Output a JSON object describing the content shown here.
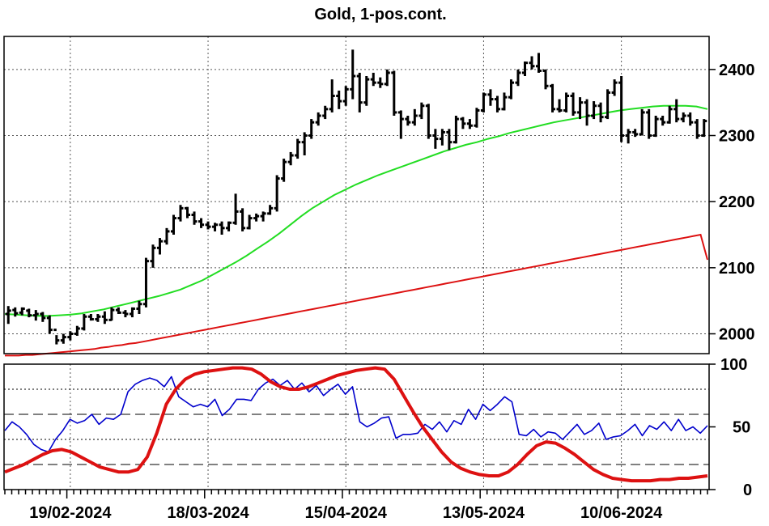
{
  "chart_data": [
    {
      "type": "ohlc",
      "title": "Gold, 1-pos.cont.",
      "ylim": [
        1970,
        2450
      ],
      "yticks": [
        2000,
        2100,
        2200,
        2300,
        2400
      ],
      "x_labels": [
        "19/02-2024",
        "18/03-2024",
        "15/04-2024",
        "13/05-2024",
        "10/06-2024"
      ],
      "x_label_index": [
        9,
        29,
        49,
        69,
        89
      ],
      "colors": {
        "bars": "#000000",
        "ma_fast": "#22dd22",
        "ma_slow": "#dd1111"
      },
      "bars": [
        [
          2030,
          2042,
          2015,
          2035
        ],
        [
          2036,
          2040,
          2026,
          2031
        ],
        [
          2032,
          2040,
          2028,
          2038
        ],
        [
          2035,
          2038,
          2025,
          2028
        ],
        [
          2028,
          2036,
          2020,
          2030
        ],
        [
          2030,
          2033,
          2018,
          2024
        ],
        [
          2024,
          2028,
          2000,
          2006
        ],
        [
          2006,
          1998,
          1984,
          1990
        ],
        [
          1990,
          2000,
          1985,
          1995
        ],
        [
          1995,
          2004,
          1990,
          2000
        ],
        [
          2000,
          2012,
          1997,
          2008
        ],
        [
          2008,
          2030,
          2005,
          2026
        ],
        [
          2026,
          2030,
          2020,
          2022
        ],
        [
          2022,
          2030,
          2018,
          2026
        ],
        [
          2026,
          2034,
          2015,
          2021
        ],
        [
          2021,
          2040,
          2020,
          2036
        ],
        [
          2036,
          2040,
          2030,
          2032
        ],
        [
          2032,
          2036,
          2025,
          2030
        ],
        [
          2030,
          2040,
          2025,
          2038
        ],
        [
          2038,
          2050,
          2030,
          2045
        ],
        [
          2045,
          2115,
          2040,
          2110
        ],
        [
          2110,
          2135,
          2100,
          2130
        ],
        [
          2130,
          2145,
          2120,
          2140
        ],
        [
          2140,
          2160,
          2135,
          2155
        ],
        [
          2155,
          2180,
          2150,
          2175
        ],
        [
          2175,
          2195,
          2170,
          2190
        ],
        [
          2190,
          2192,
          2175,
          2180
        ],
        [
          2180,
          2185,
          2165,
          2170
        ],
        [
          2170,
          2175,
          2160,
          2165
        ],
        [
          2165,
          2170,
          2158,
          2162
        ],
        [
          2162,
          2168,
          2155,
          2165
        ],
        [
          2165,
          2170,
          2150,
          2160
        ],
        [
          2160,
          2170,
          2155,
          2168
        ],
        [
          2168,
          2212,
          2165,
          2185
        ],
        [
          2185,
          2190,
          2155,
          2160
        ],
        [
          2160,
          2180,
          2158,
          2175
        ],
        [
          2175,
          2182,
          2170,
          2178
        ],
        [
          2178,
          2185,
          2170,
          2182
        ],
        [
          2182,
          2195,
          2180,
          2190
        ],
        [
          2190,
          2240,
          2185,
          2235
        ],
        [
          2235,
          2265,
          2230,
          2260
        ],
        [
          2260,
          2275,
          2255,
          2270
        ],
        [
          2270,
          2295,
          2265,
          2290
        ],
        [
          2290,
          2305,
          2270,
          2300
        ],
        [
          2300,
          2325,
          2295,
          2320
        ],
        [
          2320,
          2335,
          2315,
          2330
        ],
        [
          2330,
          2345,
          2325,
          2340
        ],
        [
          2340,
          2385,
          2335,
          2360
        ],
        [
          2360,
          2368,
          2340,
          2352
        ],
        [
          2352,
          2375,
          2345,
          2370
        ],
        [
          2370,
          2430,
          2355,
          2390
        ],
        [
          2390,
          2395,
          2335,
          2350
        ],
        [
          2350,
          2390,
          2345,
          2385
        ],
        [
          2385,
          2395,
          2375,
          2380
        ],
        [
          2380,
          2388,
          2372,
          2378
        ],
        [
          2378,
          2400,
          2375,
          2395
        ],
        [
          2395,
          2398,
          2330,
          2335
        ],
        [
          2335,
          2338,
          2295,
          2325
        ],
        [
          2325,
          2330,
          2315,
          2320
        ],
        [
          2320,
          2340,
          2315,
          2330
        ],
        [
          2330,
          2350,
          2325,
          2345
        ],
        [
          2345,
          2348,
          2295,
          2300
        ],
        [
          2300,
          2310,
          2280,
          2295
        ],
        [
          2295,
          2310,
          2285,
          2305
        ],
        [
          2305,
          2310,
          2278,
          2290
        ],
        [
          2290,
          2330,
          2288,
          2325
        ],
        [
          2325,
          2328,
          2310,
          2318
        ],
        [
          2318,
          2325,
          2310,
          2315
        ],
        [
          2315,
          2342,
          2312,
          2338
        ],
        [
          2338,
          2365,
          2335,
          2362
        ],
        [
          2362,
          2370,
          2345,
          2355
        ],
        [
          2355,
          2360,
          2335,
          2340
        ],
        [
          2340,
          2365,
          2338,
          2358
        ],
        [
          2358,
          2385,
          2355,
          2380
        ],
        [
          2380,
          2400,
          2375,
          2395
        ],
        [
          2395,
          2412,
          2390,
          2410
        ],
        [
          2410,
          2420,
          2400,
          2405
        ],
        [
          2405,
          2425,
          2395,
          2398
        ],
        [
          2398,
          2400,
          2370,
          2375
        ],
        [
          2375,
          2378,
          2335,
          2340
        ],
        [
          2340,
          2355,
          2335,
          2338
        ],
        [
          2338,
          2365,
          2335,
          2360
        ],
        [
          2360,
          2365,
          2330,
          2335
        ],
        [
          2335,
          2358,
          2325,
          2350
        ],
        [
          2350,
          2355,
          2315,
          2330
        ],
        [
          2330,
          2352,
          2325,
          2345
        ],
        [
          2345,
          2350,
          2320,
          2328
        ],
        [
          2328,
          2370,
          2325,
          2365
        ],
        [
          2365,
          2385,
          2360,
          2380
        ],
        [
          2380,
          2390,
          2290,
          2300
        ],
        [
          2300,
          2310,
          2288,
          2305
        ],
        [
          2305,
          2310,
          2298,
          2302
        ],
        [
          2302,
          2340,
          2300,
          2335
        ],
        [
          2335,
          2340,
          2295,
          2300
        ],
        [
          2300,
          2330,
          2298,
          2325
        ],
        [
          2325,
          2330,
          2315,
          2320
        ],
        [
          2320,
          2345,
          2318,
          2340
        ],
        [
          2340,
          2355,
          2320,
          2325
        ],
        [
          2325,
          2335,
          2320,
          2330
        ],
        [
          2330,
          2335,
          2315,
          2320
        ],
        [
          2320,
          2325,
          2295,
          2300
        ],
        [
          2300,
          2325,
          2298,
          2322
        ]
      ],
      "ma_fast": [
        2030,
        2029,
        2028,
        2027,
        2027,
        2028,
        2029,
        2031,
        2034,
        2037,
        2041,
        2045,
        2049,
        2053,
        2057,
        2062,
        2067,
        2074,
        2081,
        2090,
        2099,
        2108,
        2118,
        2129,
        2140,
        2152,
        2165,
        2178,
        2190,
        2200,
        2210,
        2218,
        2226,
        2233,
        2240,
        2246,
        2252,
        2258,
        2264,
        2270,
        2276,
        2281,
        2286,
        2290,
        2295,
        2299,
        2304,
        2308,
        2312,
        2316,
        2320,
        2323,
        2326,
        2329,
        2332,
        2335,
        2338,
        2340,
        2342,
        2344,
        2345,
        2345,
        2345,
        2344,
        2340
      ],
      "ma_fast_start": 0,
      "ma_slow": [
        1967,
        1967,
        1967,
        1968,
        1968,
        1969,
        1970,
        1971,
        1972,
        1973,
        1974,
        1975,
        1976,
        1977,
        1979,
        1980,
        1982,
        1983,
        1985,
        1986,
        1988,
        1990,
        1992,
        1994,
        1996,
        1998,
        2000,
        2002,
        2004,
        2006,
        2008,
        2010,
        2012,
        2014,
        2016,
        2018,
        2020,
        2022,
        2024,
        2026,
        2028,
        2030,
        2032,
        2034,
        2036,
        2038,
        2040,
        2042,
        2044,
        2046,
        2048,
        2050,
        2052,
        2054,
        2056,
        2058,
        2060,
        2062,
        2064,
        2066,
        2068,
        2070,
        2072,
        2074,
        2076,
        2078,
        2080,
        2082,
        2084,
        2086,
        2088,
        2090,
        2092,
        2094,
        2096,
        2098,
        2100,
        2102,
        2104,
        2106,
        2108,
        2110,
        2112,
        2114,
        2116,
        2118,
        2120,
        2122,
        2124,
        2126,
        2128,
        2130,
        2132,
        2134,
        2136,
        2138,
        2140,
        2142,
        2144,
        2146,
        2148,
        2150,
        2112
      ]
    },
    {
      "type": "line",
      "ylim": [
        0,
        100
      ],
      "yticks": [
        0,
        50,
        100
      ],
      "dotted_levels": [
        80,
        40
      ],
      "dashed_levels": [
        60,
        20
      ],
      "series": [
        {
          "color": "#0000cc",
          "values": [
            47,
            54,
            50,
            44,
            36,
            32,
            30,
            40,
            47,
            56,
            53,
            55,
            60,
            52,
            57,
            56,
            60,
            78,
            84,
            87,
            89,
            87,
            82,
            90,
            74,
            70,
            66,
            68,
            66,
            72,
            59,
            64,
            72,
            72,
            71,
            80,
            85,
            88,
            83,
            87,
            80,
            85,
            78,
            83,
            75,
            80,
            84,
            76,
            82,
            54,
            50,
            53,
            57,
            58,
            41,
            44,
            44,
            45,
            52,
            48,
            54,
            46,
            55,
            52,
            64,
            56,
            68,
            63,
            68,
            74,
            70,
            44,
            43,
            48,
            42,
            46,
            45,
            40,
            46,
            52,
            44,
            47,
            53,
            40,
            42,
            43,
            47,
            52,
            43,
            51,
            48,
            54,
            47,
            56,
            47,
            50,
            45,
            51
          ]
        },
        {
          "color": "#dd1111",
          "values": [
            14,
            17,
            20,
            24,
            28,
            31,
            32,
            30,
            26,
            22,
            18,
            16,
            14,
            14,
            16,
            26,
            45,
            68,
            80,
            88,
            92,
            94,
            95,
            96,
            97,
            97,
            96,
            92,
            86,
            82,
            80,
            80,
            82,
            85,
            88,
            91,
            93,
            95,
            96,
            97,
            96,
            88,
            75,
            62,
            50,
            40,
            30,
            22,
            17,
            14,
            12,
            11,
            11,
            14,
            20,
            28,
            35,
            38,
            37,
            33,
            28,
            22,
            16,
            12,
            9,
            8,
            7,
            7,
            7,
            8,
            8,
            9,
            9,
            10,
            11
          ]
        }
      ]
    }
  ]
}
